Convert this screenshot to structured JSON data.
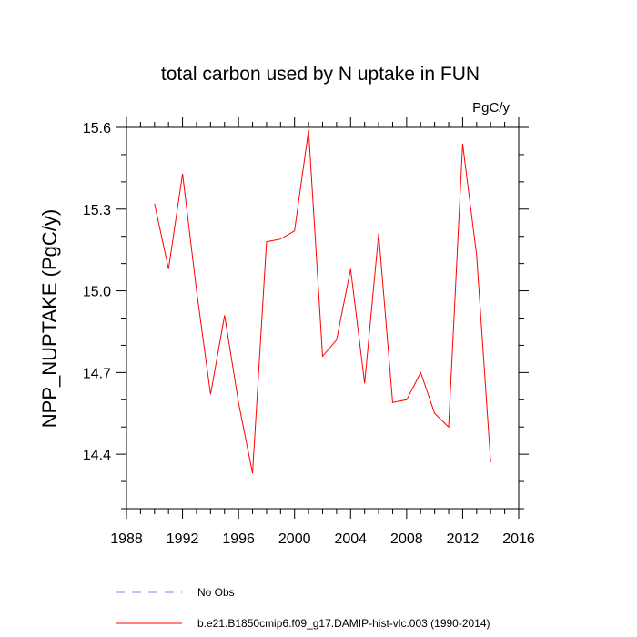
{
  "chart_data": {
    "type": "line",
    "title": "total carbon used by N uptake in FUN",
    "units": "PgC/y",
    "ylabel": "NPP_NUPTAKE  (PgC/y)",
    "xlabel": "",
    "xlim": [
      1988,
      2016
    ],
    "ylim": [
      14.2,
      15.6
    ],
    "xticks": [
      1988,
      1992,
      1996,
      2000,
      2004,
      2008,
      2012,
      2016
    ],
    "xtick_labels": [
      "1988",
      "1992",
      "1996",
      "2000",
      "2004",
      "2008",
      "2012",
      "2016"
    ],
    "yticks": [
      14.4,
      14.7,
      15.0,
      15.3,
      15.6
    ],
    "ytick_labels": [
      "14.4",
      "14.7",
      "15.0",
      "15.3",
      "15.6"
    ],
    "grid": false,
    "series": [
      {
        "name": "b.e21.B1850cmip6.f09_g17.DAMIP-hist-vlc.003 (1990-2014)",
        "color": "#ff0000",
        "x": [
          1990,
          1991,
          1992,
          1993,
          1994,
          1995,
          1996,
          1997,
          1998,
          1999,
          2000,
          2001,
          2002,
          2003,
          2004,
          2005,
          2006,
          2007,
          2008,
          2009,
          2010,
          2011,
          2012,
          2013,
          2014
        ],
        "values": [
          15.32,
          15.08,
          15.43,
          15.0,
          14.62,
          14.91,
          14.59,
          14.33,
          15.18,
          15.19,
          15.22,
          15.59,
          14.76,
          14.82,
          15.08,
          14.66,
          15.21,
          14.59,
          14.6,
          14.7,
          14.55,
          14.5,
          15.54,
          15.13,
          14.37
        ]
      }
    ],
    "legend": [
      {
        "label": "No Obs",
        "color": "#8080ff",
        "style": "dashed"
      },
      {
        "label": "b.e21.B1850cmip6.f09_g17.DAMIP-hist-vlc.003 (1990-2014)",
        "color": "#ff0000",
        "style": "solid"
      }
    ]
  }
}
